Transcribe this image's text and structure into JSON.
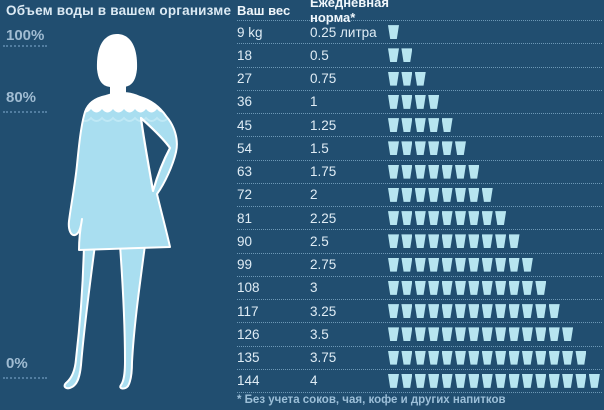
{
  "left_panel": {
    "title": "Объем воды в вашем организме",
    "labels": [
      {
        "text": "100%"
      },
      {
        "text": "80%"
      },
      {
        "text": "0%"
      }
    ]
  },
  "table": {
    "headers": {
      "weight": "Ваш вес",
      "norm": "Ежедневная норма*"
    },
    "rows": [
      {
        "weight": "9 kg",
        "norm": "0.25 литра",
        "cups": 1
      },
      {
        "weight": "18",
        "norm": "0.5",
        "cups": 2
      },
      {
        "weight": "27",
        "norm": "0.75",
        "cups": 3
      },
      {
        "weight": "36",
        "norm": "1",
        "cups": 4
      },
      {
        "weight": "45",
        "norm": "1.25",
        "cups": 5
      },
      {
        "weight": "54",
        "norm": "1.5",
        "cups": 6
      },
      {
        "weight": "63",
        "norm": "1.75",
        "cups": 7
      },
      {
        "weight": "72",
        "norm": "2",
        "cups": 8
      },
      {
        "weight": "81",
        "norm": "2.25",
        "cups": 9
      },
      {
        "weight": "90",
        "norm": "2.5",
        "cups": 10
      },
      {
        "weight": "99",
        "norm": "2.75",
        "cups": 11
      },
      {
        "weight": "108",
        "norm": "3",
        "cups": 12
      },
      {
        "weight": "117",
        "norm": "3.25",
        "cups": 13
      },
      {
        "weight": "126",
        "norm": "3.5",
        "cups": 14
      },
      {
        "weight": "135",
        "norm": "3.75",
        "cups": 15
      },
      {
        "weight": "144",
        "norm": "4",
        "cups": 16
      }
    ]
  },
  "footnote": "* Без учета соков, чая, кофе и других напитков",
  "colors": {
    "background": "#214e70",
    "title_text": "#dceaf4",
    "header_text": "#f0f7fc",
    "row_text": "#dfecf5",
    "muted_text": "#a0bcd2",
    "footnote_text": "#9cbfd8",
    "sep": "#6d98b6",
    "dotline": "#527ea1",
    "cup": "#b7e5f0",
    "water": "#a9def0",
    "silhouette": "#ffffff"
  },
  "chart_data": {
    "type": "table",
    "title": "Объем воды в вашем организме",
    "columns": [
      "Ваш вес",
      "Ежедневная норма*",
      "Стаканы"
    ],
    "weights_kg": [
      9,
      18,
      27,
      36,
      45,
      54,
      63,
      72,
      81,
      90,
      99,
      108,
      117,
      126,
      135,
      144
    ],
    "norm_liters": [
      0.25,
      0.5,
      0.75,
      1,
      1.25,
      1.5,
      1.75,
      2,
      2.25,
      2.5,
      2.75,
      3,
      3.25,
      3.5,
      3.75,
      4
    ],
    "cups_per_row": [
      1,
      2,
      3,
      4,
      5,
      6,
      7,
      8,
      9,
      10,
      11,
      12,
      13,
      14,
      15,
      16
    ],
    "body_water_axis_labels": [
      "100%",
      "80%",
      "0%"
    ],
    "footnote": "* Без учета соков, чая, кофе и других напитков",
    "legend_position": "none",
    "grid": "dotted-row-separators"
  }
}
